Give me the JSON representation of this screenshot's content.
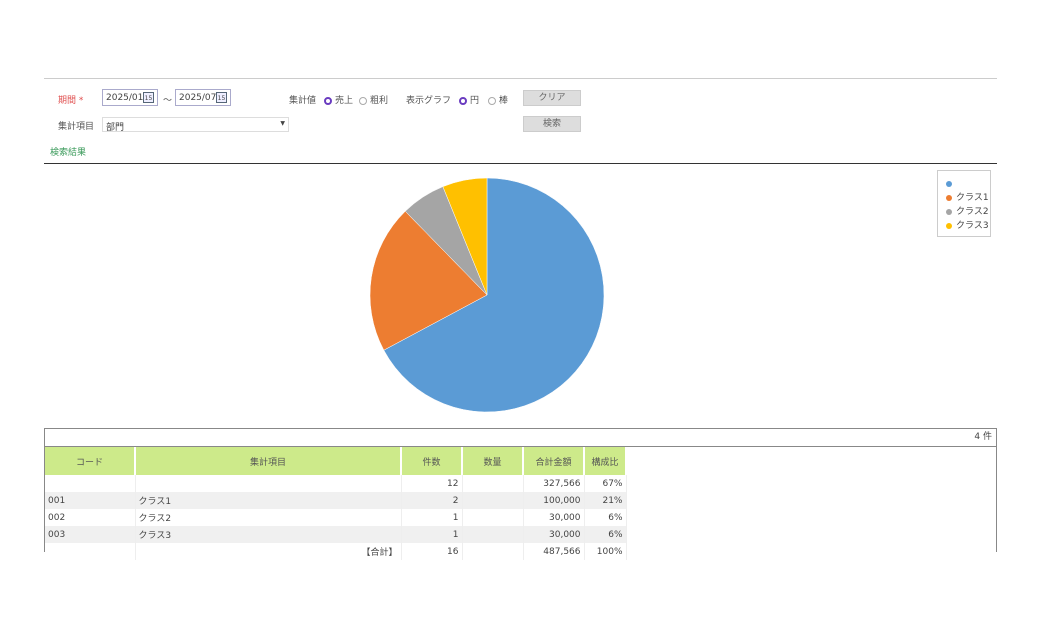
{
  "filters": {
    "period_label": "期間",
    "required_mark": "*",
    "date_from": "2025/01",
    "date_to": "2025/07",
    "tilde": "～",
    "calendar_text": "15",
    "agg_value_label": "集計値",
    "agg_options": [
      "売上",
      "粗利"
    ],
    "agg_selected": "売上",
    "graph_label": "表示グラフ",
    "graph_options": [
      "円",
      "棒"
    ],
    "graph_selected": "円",
    "clear_button": "クリア",
    "search_button": "検索",
    "agg_item_label": "集計項目",
    "agg_item_value": "部門"
  },
  "results_label": "検索結果",
  "chart_data": {
    "type": "pie",
    "categories": [
      "",
      "クラス1",
      "クラス2",
      "クラス3"
    ],
    "values": [
      327566,
      100000,
      30000,
      30000
    ],
    "colors": [
      "#5b9bd5",
      "#ed7d31",
      "#a5a5a5",
      "#ffc000"
    ],
    "legend": "top-right"
  },
  "table": {
    "count": "4 件",
    "headers": [
      "コード",
      "集計項目",
      "件数",
      "数量",
      "合計金額",
      "構成比"
    ],
    "rows": [
      [
        "",
        "",
        "12",
        "",
        "327,566",
        "67%"
      ],
      [
        "001",
        "クラス1",
        "2",
        "",
        "100,000",
        "21%"
      ],
      [
        "002",
        "クラス2",
        "1",
        "",
        "30,000",
        "6%"
      ],
      [
        "003",
        "クラス3",
        "1",
        "",
        "30,000",
        "6%"
      ],
      [
        "",
        "【合計】",
        "16",
        "",
        "487,566",
        "100%"
      ]
    ]
  }
}
